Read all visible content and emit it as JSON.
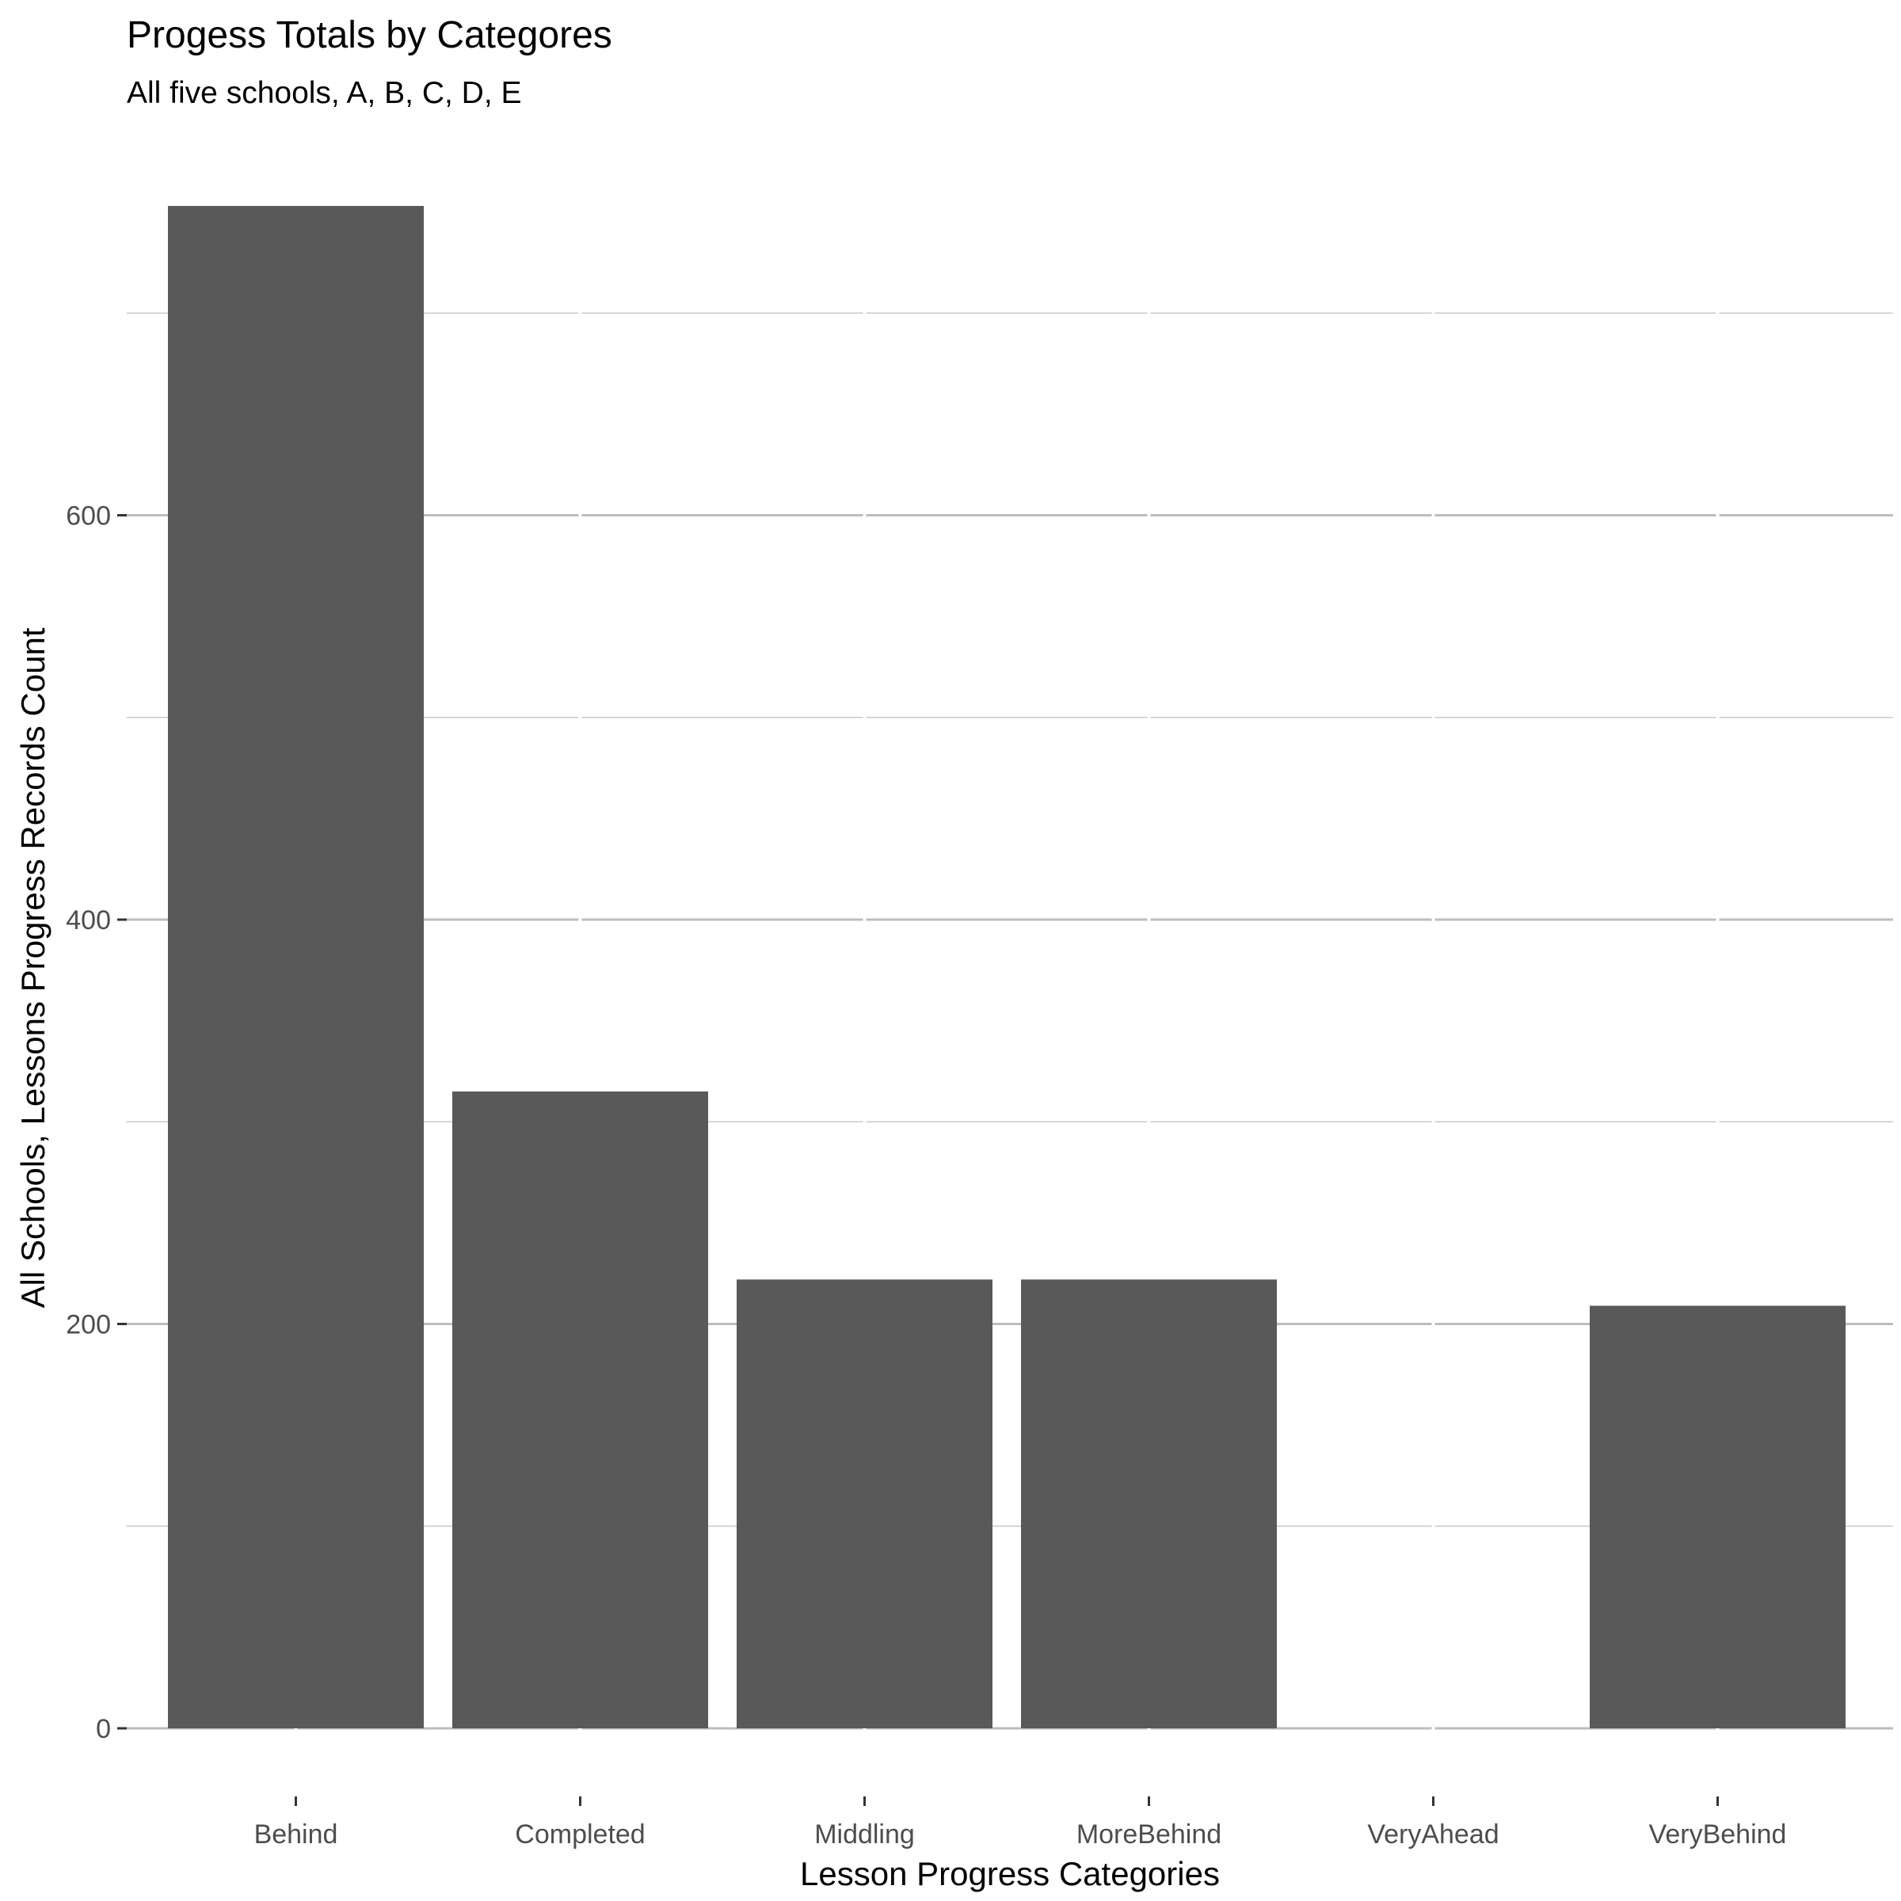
{
  "chart_data": {
    "type": "bar",
    "title": "Progess Totals by Categores",
    "subtitle": "All five schools, A, B, C, D, E",
    "xlabel": "Lesson Progress Categories",
    "ylabel": "All Schools, Lessons Progress Records Count",
    "categories": [
      "Behind",
      "Completed",
      "Middling",
      "MoreBehind",
      "VeryAhead",
      "VeryBehind"
    ],
    "values": [
      753,
      315,
      222,
      222,
      0,
      209
    ],
    "ylim": [
      0,
      753
    ],
    "yticks": [
      0,
      200,
      400,
      600
    ],
    "ytick_labels": [
      "0",
      "200",
      "400",
      "600"
    ],
    "grid": true,
    "bar_color": "#595959"
  }
}
